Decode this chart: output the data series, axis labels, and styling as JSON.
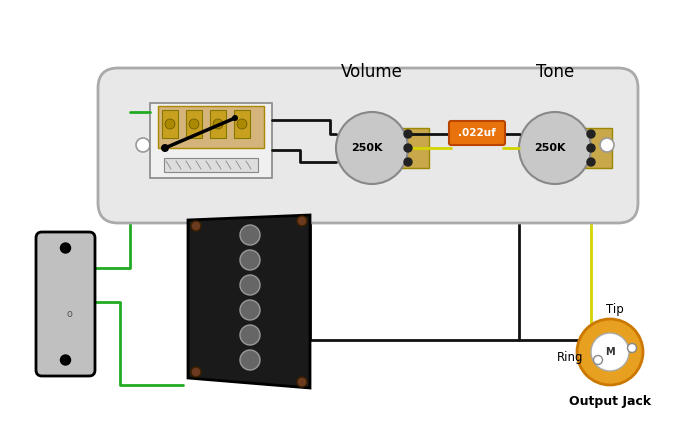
{
  "plate_color": "#e8e8e8",
  "plate_border": "#aaaaaa",
  "switch_body_color": "#f5f5f5",
  "switch_plate_color": "#d4b47a",
  "pot_color": "#c8c8c8",
  "pot_lug_color": "#c8a84b",
  "cap_color": "#e8720c",
  "jack_outer_color": "#e8a020",
  "jack_inner_color": "#ffffff",
  "wire_black": "#111111",
  "wire_green": "#22aa22",
  "wire_yellow": "#d4d400",
  "neck_pickup_color": "#c0c0c0",
  "bridge_pickup_color": "#1a1a1a",
  "pole_color": "#666666",
  "title_volume": "Volume",
  "title_tone": "Tone",
  "label_vol": "250K",
  "label_tone": "250K",
  "label_cap": ".022uf",
  "label_tip": "Tip",
  "label_ring": "Ring",
  "label_jack": "Output Jack"
}
